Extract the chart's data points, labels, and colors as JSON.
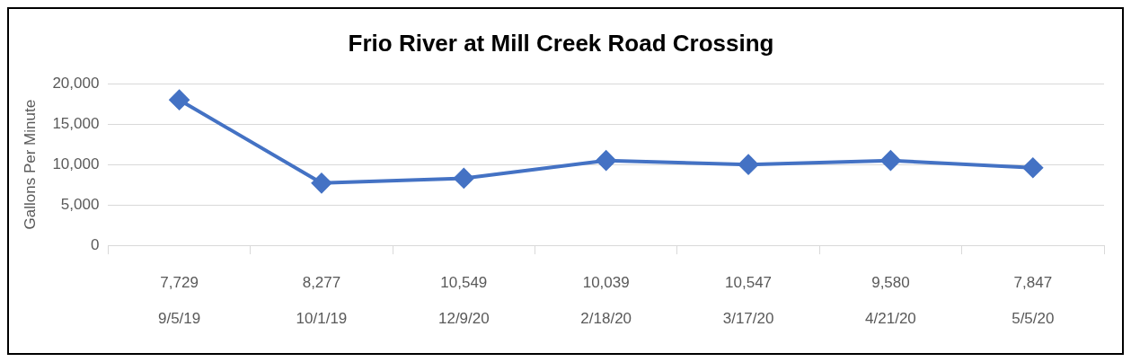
{
  "chart_data": {
    "type": "line",
    "title": "Frio River at Mill Creek Road Crossing",
    "ylabel": "Gallons Per Minute",
    "categories": [
      "7,729\n9/5/19",
      "8,277\n10/1/19",
      "10,549\n12/9/20",
      "10,039\n2/18/20",
      "10,547\n3/17/20",
      "9,580\n4/21/20",
      "7,847\n5/5/20"
    ],
    "series": [
      {
        "color": "#4472c4",
        "values": [
          18000,
          7700,
          8300,
          10500,
          10000,
          10500,
          9600
        ]
      }
    ],
    "ylim": [
      0,
      20000
    ],
    "yticks": [
      {
        "value": 0,
        "label": "0"
      },
      {
        "value": 5000,
        "label": "5,000"
      },
      {
        "value": 10000,
        "label": "10,000"
      },
      {
        "value": 15000,
        "label": "15,000"
      },
      {
        "value": 20000,
        "label": "20,000"
      }
    ],
    "grid": "y",
    "legend": false,
    "marker": "diamond",
    "line_style": "solid"
  }
}
